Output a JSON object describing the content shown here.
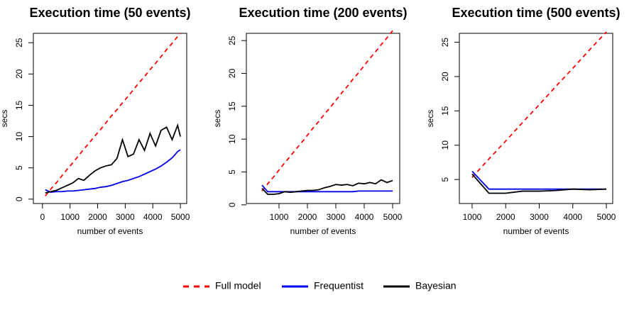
{
  "chart_data": [
    {
      "type": "line",
      "title": "Execution time (50 events)",
      "x_label": "number of events",
      "y_label": "secs",
      "x": [
        100,
        300,
        500,
        700,
        900,
        1100,
        1300,
        1500,
        1700,
        1900,
        2100,
        2300,
        2500,
        2700,
        2900,
        3100,
        3300,
        3500,
        3700,
        3900,
        4100,
        4300,
        4500,
        4700,
        4900,
        5000
      ],
      "series": [
        {
          "name": "Full model",
          "color": "#ff0000",
          "linestyle": "dashed",
          "values": [
            0.5,
            1.6,
            2.6,
            3.7,
            4.8,
            5.8,
            6.9,
            8.0,
            9.0,
            10.1,
            11.1,
            12.2,
            13.3,
            14.3,
            15.4,
            16.4,
            17.5,
            18.6,
            19.6,
            20.7,
            21.7,
            22.8,
            23.9,
            24.9,
            26.0,
            26.5
          ]
        },
        {
          "name": "Frequentist",
          "color": "#0000ee",
          "linestyle": "solid",
          "values": [
            1.5,
            1.1,
            1.2,
            1.2,
            1.3,
            1.3,
            1.4,
            1.5,
            1.6,
            1.7,
            1.9,
            2.0,
            2.2,
            2.5,
            2.8,
            3.0,
            3.3,
            3.6,
            4.0,
            4.4,
            4.8,
            5.3,
            5.9,
            6.6,
            7.6,
            7.9
          ]
        },
        {
          "name": "Bayesian",
          "color": "#000000",
          "linestyle": "solid",
          "values": [
            1.0,
            1.2,
            1.4,
            1.8,
            2.2,
            2.6,
            3.3,
            3.0,
            3.8,
            4.5,
            5.0,
            5.3,
            5.5,
            6.5,
            9.5,
            6.8,
            7.2,
            9.5,
            7.8,
            10.5,
            8.5,
            11.0,
            11.5,
            9.5,
            11.8,
            10.0
          ]
        }
      ],
      "xlim": [
        -330,
        5230
      ],
      "xticks": [
        0,
        1000,
        2000,
        3000,
        4000,
        5000
      ],
      "ylim": [
        -0.7,
        26.5
      ],
      "yticks": [
        0,
        5,
        10,
        15,
        20,
        25
      ]
    },
    {
      "type": "line",
      "title": "Execution time (200 events)",
      "x_label": "number of events",
      "y_label": "secs",
      "x": [
        400,
        600,
        800,
        1000,
        1200,
        1400,
        1600,
        1800,
        2000,
        2200,
        2400,
        2600,
        2800,
        3000,
        3200,
        3400,
        3600,
        3800,
        4000,
        4200,
        4400,
        4600,
        4800,
        5000
      ],
      "series": [
        {
          "color": "#ff0000",
          "linestyle": "dashed",
          "values": [
            2.1,
            3.2,
            4.2,
            5.3,
            6.4,
            7.4,
            8.5,
            9.5,
            10.6,
            11.7,
            12.7,
            13.8,
            14.8,
            15.9,
            17.0,
            18.0,
            19.1,
            20.1,
            21.2,
            22.3,
            23.3,
            24.4,
            25.4,
            26.5
          ]
        },
        {
          "color": "#0000ee",
          "linestyle": "solid",
          "values": [
            3.0,
            2.0,
            2.0,
            2.0,
            2.0,
            2.0,
            2.0,
            2.0,
            2.0,
            2.0,
            2.0,
            2.0,
            2.0,
            2.0,
            2.0,
            2.0,
            2.0,
            2.1,
            2.1,
            2.1,
            2.1,
            2.1,
            2.1,
            2.1
          ]
        },
        {
          "color": "#000000",
          "linestyle": "solid",
          "values": [
            2.5,
            1.6,
            1.6,
            1.7,
            2.0,
            1.9,
            2.0,
            2.1,
            2.2,
            2.2,
            2.3,
            2.6,
            2.8,
            3.1,
            3.0,
            3.1,
            2.9,
            3.3,
            3.2,
            3.4,
            3.2,
            3.8,
            3.4,
            3.7
          ]
        }
      ],
      "xlim": [
        -150,
        5250
      ],
      "xticks": [
        1000,
        2000,
        3000,
        4000,
        5000
      ],
      "ylim": [
        0.2,
        26.1
      ],
      "yticks": [
        0,
        5,
        10,
        15,
        20,
        25
      ]
    },
    {
      "type": "line",
      "title": "Execution time (500 events)",
      "x_label": "number of events",
      "y_label": "secs",
      "x": [
        1000,
        1500,
        2000,
        2500,
        3000,
        3500,
        4000,
        4500,
        5000
      ],
      "series": [
        {
          "color": "#ff0000",
          "linestyle": "dashed",
          "values": [
            5.3,
            8.0,
            10.6,
            13.3,
            15.9,
            18.6,
            21.2,
            23.9,
            26.5
          ]
        },
        {
          "color": "#0000ee",
          "linestyle": "solid",
          "values": [
            6.2,
            3.6,
            3.6,
            3.6,
            3.6,
            3.6,
            3.6,
            3.6,
            3.6
          ]
        },
        {
          "color": "#000000",
          "linestyle": "solid",
          "values": [
            5.8,
            3.0,
            3.0,
            3.3,
            3.3,
            3.4,
            3.6,
            3.5,
            3.6
          ]
        }
      ],
      "xlim": [
        620,
        5190
      ],
      "xticks": [
        1000,
        2000,
        3000,
        4000,
        5000
      ],
      "ylim": [
        1.5,
        26.3
      ],
      "yticks": [
        5,
        10,
        15,
        20,
        25
      ]
    }
  ]
}
